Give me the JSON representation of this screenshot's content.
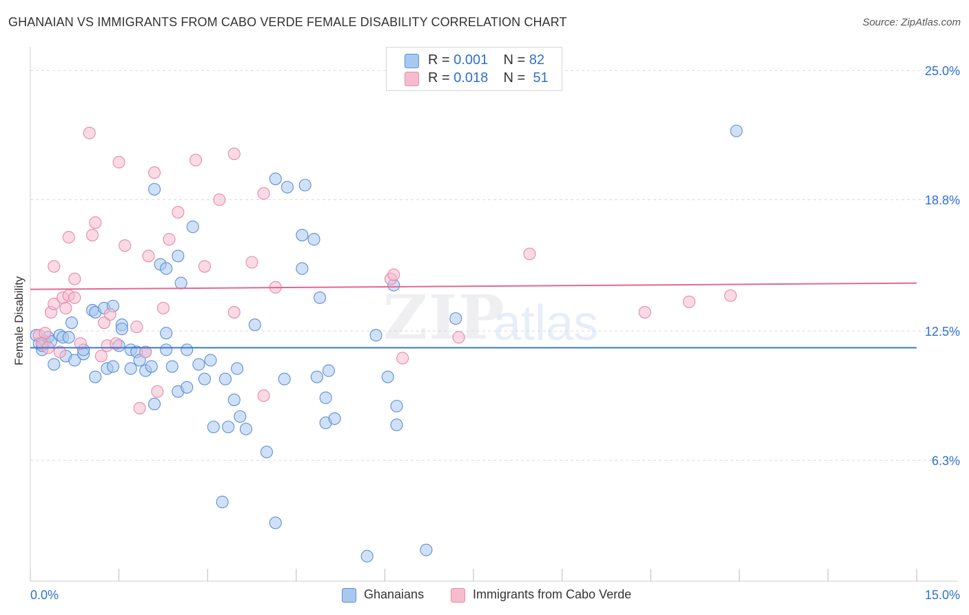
{
  "title": "GHANAIAN VS IMMIGRANTS FROM CABO VERDE FEMALE DISABILITY CORRELATION CHART",
  "source": "Source: ZipAtlas.com",
  "watermark": {
    "zip": "ZIP",
    "atlas": "atlas"
  },
  "colors": {
    "blue_fill": "#a9c8f0",
    "blue_stroke": "#5b8fd6",
    "blue_line": "#3a78d4",
    "pink_fill": "#f6bccd",
    "pink_stroke": "#e58aa8",
    "pink_line": "#e4678f",
    "tick_label": "#2f6fd0",
    "grid": "#d9d9d9"
  },
  "legend": {
    "rows": [
      {
        "r_label": "R = ",
        "r_value": "0.001",
        "n_label": "N = ",
        "n_value": "82"
      },
      {
        "r_label": "R = ",
        "r_value": "0.018",
        "n_label": "N = ",
        "n_value": "51"
      }
    ]
  },
  "bottom_legend": {
    "series_1": "Ghanaians",
    "series_2": "Immigrants from Cabo Verde"
  },
  "chart_data": {
    "type": "scatter",
    "title": "GHANAIAN VS IMMIGRANTS FROM CABO VERDE FEMALE DISABILITY CORRELATION CHART",
    "xlabel": "",
    "ylabel": "Female Disability",
    "xlim": [
      0,
      15
    ],
    "ylim": [
      0.5,
      25.8
    ],
    "x_tick_labels": [
      "0.0%",
      "15.0%"
    ],
    "y_ticks": [
      6.3,
      12.5,
      18.8,
      25.0
    ],
    "y_tick_labels": [
      "6.3%",
      "12.5%",
      "18.8%",
      "25.0%"
    ],
    "grid": true,
    "series": [
      {
        "name": "Ghanaians",
        "trend": [
          [
            0,
            11.7
          ],
          [
            15,
            11.7
          ]
        ],
        "points": [
          [
            0.1,
            12.3
          ],
          [
            0.15,
            11.9
          ],
          [
            0.2,
            11.6
          ],
          [
            0.25,
            12.0
          ],
          [
            0.2,
            11.8
          ],
          [
            0.3,
            12.2
          ],
          [
            0.4,
            10.9
          ],
          [
            0.35,
            12.0
          ],
          [
            0.5,
            12.3
          ],
          [
            0.55,
            12.2
          ],
          [
            0.65,
            12.2
          ],
          [
            0.7,
            12.9
          ],
          [
            0.6,
            11.3
          ],
          [
            0.75,
            11.1
          ],
          [
            0.9,
            11.4
          ],
          [
            1.05,
            13.5
          ],
          [
            1.1,
            13.4
          ],
          [
            1.25,
            13.6
          ],
          [
            1.4,
            13.7
          ],
          [
            1.55,
            12.8
          ],
          [
            1.55,
            12.6
          ],
          [
            1.1,
            10.3
          ],
          [
            1.3,
            10.7
          ],
          [
            1.4,
            10.8
          ],
          [
            1.7,
            10.7
          ],
          [
            1.7,
            11.6
          ],
          [
            1.8,
            11.5
          ],
          [
            1.85,
            11.1
          ],
          [
            1.95,
            11.5
          ],
          [
            1.95,
            10.6
          ],
          [
            2.05,
            10.8
          ],
          [
            2.1,
            9.0
          ],
          [
            2.3,
            12.4
          ],
          [
            2.3,
            11.6
          ],
          [
            2.4,
            10.8
          ],
          [
            2.5,
            9.6
          ],
          [
            2.65,
            9.8
          ],
          [
            2.65,
            11.6
          ],
          [
            2.85,
            10.9
          ],
          [
            2.95,
            10.2
          ],
          [
            3.05,
            11.1
          ],
          [
            3.1,
            7.9
          ],
          [
            3.3,
            10.2
          ],
          [
            3.35,
            7.9
          ],
          [
            3.45,
            9.2
          ],
          [
            3.5,
            10.7
          ],
          [
            3.55,
            8.4
          ],
          [
            3.65,
            7.8
          ],
          [
            3.8,
            12.8
          ],
          [
            2.1,
            19.3
          ],
          [
            2.2,
            15.7
          ],
          [
            2.3,
            15.5
          ],
          [
            2.5,
            16.1
          ],
          [
            2.55,
            14.8
          ],
          [
            2.75,
            17.5
          ],
          [
            4.15,
            19.8
          ],
          [
            4.35,
            19.4
          ],
          [
            4.65,
            19.5
          ],
          [
            4.6,
            17.1
          ],
          [
            4.8,
            16.9
          ],
          [
            4.6,
            15.5
          ],
          [
            4.9,
            14.1
          ],
          [
            4.3,
            10.2
          ],
          [
            4.85,
            10.3
          ],
          [
            5.0,
            9.3
          ],
          [
            5.05,
            10.6
          ],
          [
            5.0,
            8.1
          ],
          [
            5.15,
            8.3
          ],
          [
            5.85,
            12.3
          ],
          [
            6.05,
            10.3
          ],
          [
            6.15,
            14.7
          ],
          [
            6.2,
            8.9
          ],
          [
            6.2,
            8.0
          ],
          [
            7.2,
            13.1
          ],
          [
            11.95,
            22.1
          ],
          [
            3.25,
            4.3
          ],
          [
            4.15,
            3.3
          ],
          [
            4.0,
            6.7
          ],
          [
            5.7,
            1.7
          ],
          [
            6.7,
            2.0
          ],
          [
            0.9,
            11.6
          ],
          [
            1.5,
            11.8
          ]
        ]
      },
      {
        "name": "Immigrants from Cabo Verde",
        "trend": [
          [
            0,
            14.5
          ],
          [
            15,
            14.8
          ]
        ],
        "points": [
          [
            0.15,
            12.3
          ],
          [
            0.25,
            12.4
          ],
          [
            0.2,
            11.9
          ],
          [
            0.3,
            11.7
          ],
          [
            0.35,
            13.4
          ],
          [
            0.4,
            13.8
          ],
          [
            0.55,
            14.1
          ],
          [
            0.6,
            13.6
          ],
          [
            0.65,
            14.2
          ],
          [
            0.75,
            14.1
          ],
          [
            0.5,
            11.5
          ],
          [
            0.85,
            11.9
          ],
          [
            0.65,
            17.0
          ],
          [
            0.75,
            15.0
          ],
          [
            0.4,
            15.6
          ],
          [
            1.0,
            22.0
          ],
          [
            1.05,
            17.1
          ],
          [
            1.1,
            17.7
          ],
          [
            1.25,
            12.9
          ],
          [
            1.35,
            13.3
          ],
          [
            1.3,
            11.8
          ],
          [
            1.45,
            11.9
          ],
          [
            1.5,
            20.6
          ],
          [
            1.6,
            16.6
          ],
          [
            1.8,
            12.7
          ],
          [
            1.95,
            11.5
          ],
          [
            1.85,
            8.8
          ],
          [
            2.0,
            16.1
          ],
          [
            2.1,
            20.1
          ],
          [
            2.15,
            9.6
          ],
          [
            2.25,
            13.6
          ],
          [
            2.35,
            16.9
          ],
          [
            2.5,
            18.2
          ],
          [
            2.8,
            20.7
          ],
          [
            2.95,
            15.6
          ],
          [
            3.2,
            18.8
          ],
          [
            3.45,
            21.0
          ],
          [
            3.45,
            13.4
          ],
          [
            3.75,
            15.8
          ],
          [
            3.95,
            19.1
          ],
          [
            3.95,
            9.4
          ],
          [
            4.15,
            14.6
          ],
          [
            6.1,
            15.0
          ],
          [
            6.15,
            15.2
          ],
          [
            6.3,
            11.2
          ],
          [
            7.25,
            12.2
          ],
          [
            8.45,
            16.2
          ],
          [
            10.4,
            13.4
          ],
          [
            11.15,
            13.9
          ],
          [
            11.85,
            14.2
          ],
          [
            1.2,
            11.3
          ]
        ]
      }
    ]
  }
}
